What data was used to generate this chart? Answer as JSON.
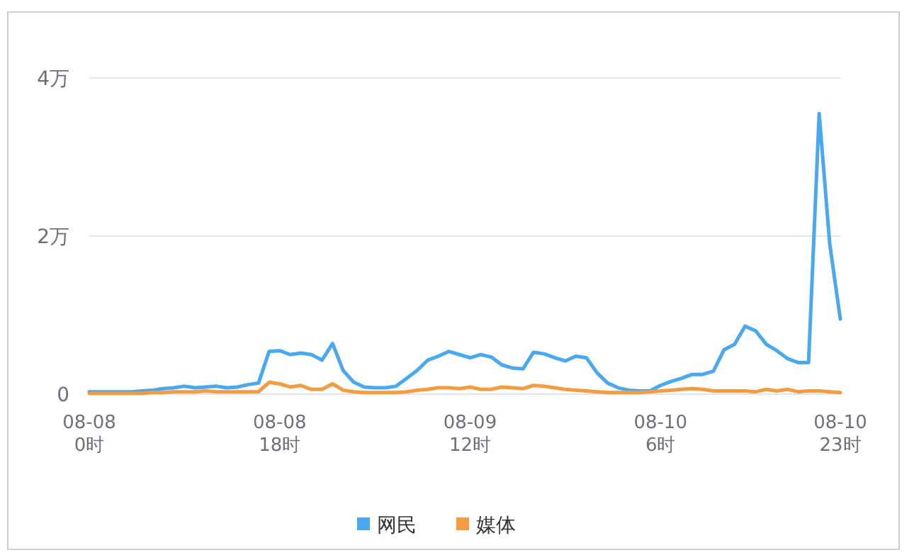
{
  "chart_data": {
    "type": "line",
    "categories": [
      "08-08\n0时",
      null,
      null,
      null,
      null,
      null,
      null,
      null,
      null,
      null,
      null,
      null,
      null,
      null,
      null,
      null,
      null,
      null,
      "08-08\n18时",
      null,
      null,
      null,
      null,
      null,
      null,
      null,
      null,
      null,
      null,
      null,
      null,
      null,
      null,
      null,
      null,
      null,
      "08-09\n12时",
      null,
      null,
      null,
      null,
      null,
      null,
      null,
      null,
      null,
      null,
      null,
      null,
      null,
      null,
      null,
      null,
      null,
      "08-10\n6时",
      null,
      null,
      null,
      null,
      null,
      null,
      null,
      null,
      null,
      null,
      null,
      null,
      null,
      null,
      null,
      null,
      "08-10\n23时"
    ],
    "series": [
      {
        "name": "网民",
        "color": "#4aa8ee",
        "values": [
          0.03,
          0.03,
          0.03,
          0.03,
          0.03,
          0.04,
          0.05,
          0.07,
          0.08,
          0.1,
          0.08,
          0.09,
          0.1,
          0.08,
          0.09,
          0.12,
          0.14,
          0.54,
          0.55,
          0.5,
          0.52,
          0.5,
          0.43,
          0.64,
          0.3,
          0.15,
          0.09,
          0.08,
          0.08,
          0.1,
          0.2,
          0.3,
          0.43,
          0.48,
          0.54,
          0.5,
          0.46,
          0.5,
          0.47,
          0.37,
          0.33,
          0.32,
          0.53,
          0.51,
          0.46,
          0.42,
          0.48,
          0.46,
          0.27,
          0.14,
          0.08,
          0.05,
          0.04,
          0.04,
          0.11,
          0.16,
          0.2,
          0.25,
          0.25,
          0.29,
          0.56,
          0.63,
          0.86,
          0.8,
          0.63,
          0.55,
          0.45,
          0.4,
          0.4,
          3.55,
          1.9,
          0.95
        ]
      },
      {
        "name": "媒体",
        "color": "#f39c41",
        "values": [
          0.01,
          0.01,
          0.01,
          0.01,
          0.01,
          0.01,
          0.02,
          0.02,
          0.03,
          0.03,
          0.03,
          0.04,
          0.03,
          0.03,
          0.03,
          0.03,
          0.03,
          0.15,
          0.13,
          0.09,
          0.11,
          0.06,
          0.06,
          0.13,
          0.05,
          0.03,
          0.02,
          0.02,
          0.02,
          0.02,
          0.03,
          0.05,
          0.06,
          0.08,
          0.08,
          0.07,
          0.09,
          0.06,
          0.06,
          0.09,
          0.08,
          0.07,
          0.11,
          0.1,
          0.08,
          0.06,
          0.05,
          0.04,
          0.03,
          0.02,
          0.02,
          0.02,
          0.02,
          0.03,
          0.04,
          0.05,
          0.06,
          0.07,
          0.06,
          0.04,
          0.04,
          0.04,
          0.04,
          0.03,
          0.06,
          0.04,
          0.06,
          0.03,
          0.04,
          0.04,
          0.03,
          0.02
        ]
      }
    ],
    "ylim": [
      0,
      4
    ],
    "yticks": [
      0,
      {
        "value": 2,
        "label": "2万"
      },
      {
        "value": 4,
        "label": "4万"
      }
    ],
    "grid": "y",
    "legend": "bottom",
    "marker": "none",
    "line_style": "solid"
  }
}
